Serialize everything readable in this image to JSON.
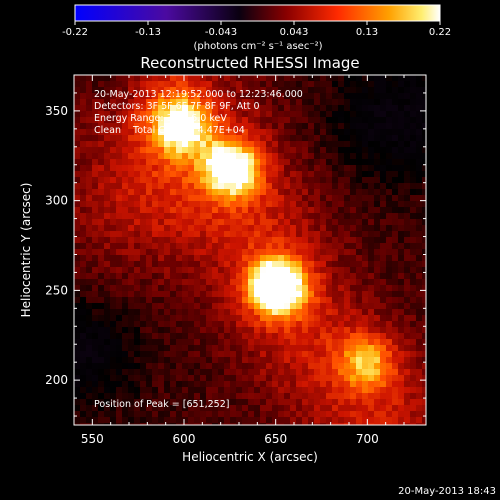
{
  "chart_data": {
    "type": "heatmap",
    "title": "Reconstructed RHESSI Image",
    "xlabel": "Heliocentric X (arcsec)",
    "ylabel": "Heliocentric Y (arcsec)",
    "xlim": [
      540,
      732
    ],
    "ylim": [
      175,
      370
    ],
    "x_ticks": [
      550,
      600,
      650,
      700
    ],
    "y_ticks": [
      200,
      250,
      300,
      350
    ],
    "grid": false,
    "colormap": "rhessi-blue-black-red-yellow-white",
    "colorbar": {
      "position": "top",
      "range": [
        -0.22,
        0.22
      ],
      "tick_labels": [
        "-0.22",
        "-0.13",
        "-0.043",
        "0.043",
        "0.13",
        "0.22"
      ],
      "units_label": "(photons cm⁻² s⁻¹ asec⁻²)"
    },
    "annotations": [
      "20-May-2013 12:19:52.000 to 12:23:46.000",
      "Detectors: 3F 5F 6F 7F 8F 9F, Att 0",
      "Energy Range: 3.0 - 6.0 keV",
      "Clean    Total Counts: 4.47E+04"
    ],
    "peak_label": "Position of Peak = [651,252]",
    "peak": {
      "x": 651,
      "y": 252,
      "value": 0.22
    },
    "sources": [
      {
        "x": 651,
        "y": 252,
        "peak": 0.22
      },
      {
        "x": 626,
        "y": 318,
        "peak": 0.17
      },
      {
        "x": 598,
        "y": 342,
        "peak": 0.15
      },
      {
        "x": 700,
        "y": 210,
        "peak": 0.1
      }
    ]
  },
  "footer_timestamp": "20-May-2013 18:43",
  "colors": {
    "background": "#000000",
    "text": "#ffffff"
  }
}
